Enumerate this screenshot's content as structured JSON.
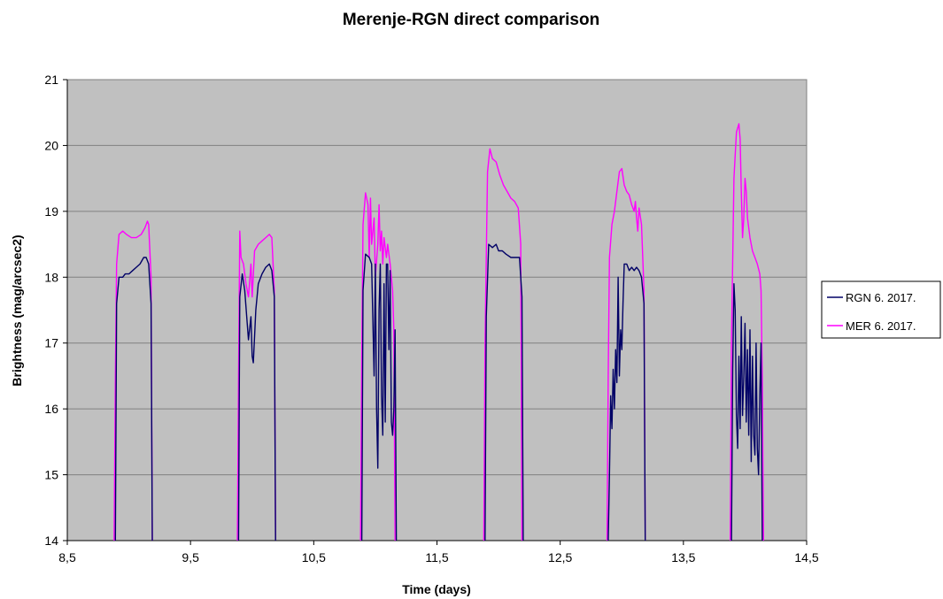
{
  "chart_data": {
    "type": "line",
    "title": "Merenje-RGN direct comparison",
    "xlabel": "Time (days)",
    "ylabel": "Brightness (mag/arcsec2)",
    "xlim": [
      8.5,
      14.5
    ],
    "ylim": [
      14,
      21
    ],
    "x_ticks": [
      "8,5",
      "9,5",
      "10,5",
      "11,5",
      "12,5",
      "13,5",
      "14,5"
    ],
    "y_ticks": [
      "14",
      "15",
      "16",
      "17",
      "18",
      "19",
      "20",
      "21"
    ],
    "grid": "horizontal",
    "plot_background": "#c0c0c0",
    "legend_position": "right",
    "series": [
      {
        "name": "RGN 6. 2017.",
        "color": "#000066",
        "points": [
          [
            8.89,
            14.0
          ],
          [
            8.9,
            17.6
          ],
          [
            8.92,
            18.0
          ],
          [
            8.95,
            18.0
          ],
          [
            8.97,
            18.05
          ],
          [
            9.0,
            18.05
          ],
          [
            9.03,
            18.1
          ],
          [
            9.06,
            18.15
          ],
          [
            9.09,
            18.2
          ],
          [
            9.12,
            18.3
          ],
          [
            9.14,
            18.3
          ],
          [
            9.16,
            18.2
          ],
          [
            9.18,
            17.6
          ],
          [
            9.19,
            14.0
          ],
          null,
          [
            9.89,
            14.0
          ],
          [
            9.9,
            17.7
          ],
          [
            9.92,
            18.05
          ],
          [
            9.94,
            17.8
          ],
          [
            9.96,
            17.3
          ],
          [
            9.97,
            17.05
          ],
          [
            9.99,
            17.4
          ],
          [
            10.0,
            16.8
          ],
          [
            10.01,
            16.7
          ],
          [
            10.02,
            17.1
          ],
          [
            10.03,
            17.5
          ],
          [
            10.05,
            17.9
          ],
          [
            10.08,
            18.05
          ],
          [
            10.11,
            18.15
          ],
          [
            10.14,
            18.2
          ],
          [
            10.16,
            18.1
          ],
          [
            10.18,
            17.7
          ],
          [
            10.19,
            14.0
          ],
          null,
          [
            10.89,
            14.0
          ],
          [
            10.9,
            17.8
          ],
          [
            10.92,
            18.35
          ],
          [
            10.95,
            18.3
          ],
          [
            10.97,
            18.2
          ],
          [
            10.99,
            16.5
          ],
          [
            11.0,
            18.2
          ],
          [
            11.01,
            16.0
          ],
          [
            11.02,
            15.1
          ],
          [
            11.03,
            17.5
          ],
          [
            11.04,
            18.2
          ],
          [
            11.05,
            16.2
          ],
          [
            11.06,
            15.6
          ],
          [
            11.07,
            17.9
          ],
          [
            11.08,
            15.8
          ],
          [
            11.09,
            18.2
          ],
          [
            11.1,
            18.2
          ],
          [
            11.11,
            16.9
          ],
          [
            11.12,
            18.1
          ],
          [
            11.13,
            15.8
          ],
          [
            11.14,
            15.6
          ],
          [
            11.15,
            16.0
          ],
          [
            11.16,
            17.2
          ],
          [
            11.17,
            14.0
          ],
          null,
          [
            11.89,
            14.0
          ],
          [
            11.9,
            17.4
          ],
          [
            11.92,
            18.5
          ],
          [
            11.95,
            18.45
          ],
          [
            11.98,
            18.5
          ],
          [
            12.0,
            18.4
          ],
          [
            12.03,
            18.4
          ],
          [
            12.06,
            18.35
          ],
          [
            12.1,
            18.3
          ],
          [
            12.14,
            18.3
          ],
          [
            12.17,
            18.3
          ],
          [
            12.19,
            17.7
          ],
          [
            12.2,
            14.0
          ],
          null,
          [
            12.89,
            14.0
          ],
          [
            12.9,
            15.0
          ],
          [
            12.91,
            16.2
          ],
          [
            12.92,
            15.7
          ],
          [
            12.93,
            16.6
          ],
          [
            12.94,
            16.0
          ],
          [
            12.95,
            16.9
          ],
          [
            12.96,
            16.4
          ],
          [
            12.97,
            18.0
          ],
          [
            12.98,
            16.5
          ],
          [
            12.99,
            17.2
          ],
          [
            13.0,
            16.9
          ],
          [
            13.01,
            17.6
          ],
          [
            13.02,
            18.2
          ],
          [
            13.04,
            18.2
          ],
          [
            13.06,
            18.1
          ],
          [
            13.08,
            18.15
          ],
          [
            13.1,
            18.1
          ],
          [
            13.12,
            18.15
          ],
          [
            13.14,
            18.1
          ],
          [
            13.16,
            18.0
          ],
          [
            13.18,
            17.6
          ],
          [
            13.19,
            14.0
          ],
          null,
          [
            13.89,
            14.0
          ],
          [
            13.9,
            16.6
          ],
          [
            13.91,
            17.9
          ],
          [
            13.92,
            17.5
          ],
          [
            13.93,
            15.9
          ],
          [
            13.94,
            15.4
          ],
          [
            13.95,
            16.8
          ],
          [
            13.96,
            15.7
          ],
          [
            13.97,
            17.4
          ],
          [
            13.98,
            15.9
          ],
          [
            13.99,
            16.5
          ],
          [
            14.0,
            17.3
          ],
          [
            14.01,
            15.8
          ],
          [
            14.02,
            16.9
          ],
          [
            14.03,
            15.6
          ],
          [
            14.04,
            17.2
          ],
          [
            14.05,
            15.2
          ],
          [
            14.06,
            16.8
          ],
          [
            14.07,
            15.6
          ],
          [
            14.08,
            15.3
          ],
          [
            14.09,
            17.0
          ],
          [
            14.1,
            15.4
          ],
          [
            14.11,
            15.0
          ],
          [
            14.12,
            16.2
          ],
          [
            14.13,
            17.0
          ],
          [
            14.14,
            14.0
          ]
        ]
      },
      {
        "name": "MER 6. 2017.",
        "color": "#ff00ff",
        "points": [
          [
            8.88,
            14.0
          ],
          [
            8.89,
            16.5
          ],
          [
            8.9,
            18.2
          ],
          [
            8.92,
            18.65
          ],
          [
            8.95,
            18.7
          ],
          [
            8.98,
            18.65
          ],
          [
            9.02,
            18.6
          ],
          [
            9.06,
            18.6
          ],
          [
            9.1,
            18.65
          ],
          [
            9.13,
            18.75
          ],
          [
            9.15,
            18.85
          ],
          [
            9.16,
            18.8
          ],
          [
            9.18,
            18.0
          ],
          [
            9.19,
            14.0
          ],
          null,
          [
            9.88,
            14.0
          ],
          [
            9.89,
            16.5
          ],
          [
            9.9,
            18.7
          ],
          [
            9.91,
            18.3
          ],
          [
            9.93,
            18.2
          ],
          [
            9.95,
            17.9
          ],
          [
            9.97,
            17.7
          ],
          [
            9.99,
            18.2
          ],
          [
            10.0,
            17.7
          ],
          [
            10.02,
            18.4
          ],
          [
            10.05,
            18.5
          ],
          [
            10.08,
            18.55
          ],
          [
            10.11,
            18.6
          ],
          [
            10.14,
            18.65
          ],
          [
            10.16,
            18.6
          ],
          [
            10.18,
            17.8
          ],
          [
            10.19,
            14.0
          ],
          null,
          [
            10.88,
            14.0
          ],
          [
            10.89,
            16.8
          ],
          [
            10.9,
            18.8
          ],
          [
            10.92,
            19.28
          ],
          [
            10.94,
            19.1
          ],
          [
            10.95,
            18.3
          ],
          [
            10.96,
            19.2
          ],
          [
            10.97,
            18.5
          ],
          [
            10.99,
            18.9
          ],
          [
            11.0,
            18.0
          ],
          [
            11.02,
            18.5
          ],
          [
            11.03,
            19.1
          ],
          [
            11.04,
            18.4
          ],
          [
            11.05,
            18.7
          ],
          [
            11.06,
            18.2
          ],
          [
            11.07,
            18.6
          ],
          [
            11.09,
            18.3
          ],
          [
            11.1,
            18.5
          ],
          [
            11.12,
            18.2
          ],
          [
            11.14,
            17.8
          ],
          [
            11.15,
            17.2
          ],
          [
            11.16,
            14.0
          ],
          null,
          [
            11.88,
            14.0
          ],
          [
            11.89,
            17.0
          ],
          [
            11.91,
            19.6
          ],
          [
            11.93,
            19.95
          ],
          [
            11.95,
            19.8
          ],
          [
            11.98,
            19.75
          ],
          [
            12.01,
            19.55
          ],
          [
            12.04,
            19.4
          ],
          [
            12.07,
            19.3
          ],
          [
            12.1,
            19.2
          ],
          [
            12.13,
            19.15
          ],
          [
            12.16,
            19.05
          ],
          [
            12.18,
            18.5
          ],
          [
            12.19,
            14.0
          ],
          null,
          [
            12.88,
            14.0
          ],
          [
            12.89,
            16.5
          ],
          [
            12.9,
            18.3
          ],
          [
            12.92,
            18.8
          ],
          [
            12.94,
            19.0
          ],
          [
            12.96,
            19.3
          ],
          [
            12.98,
            19.6
          ],
          [
            13.0,
            19.65
          ],
          [
            13.02,
            19.4
          ],
          [
            13.04,
            19.3
          ],
          [
            13.06,
            19.25
          ],
          [
            13.08,
            19.1
          ],
          [
            13.1,
            19.0
          ],
          [
            13.11,
            19.15
          ],
          [
            13.12,
            18.9
          ],
          [
            13.13,
            18.7
          ],
          [
            13.14,
            19.05
          ],
          [
            13.16,
            18.8
          ],
          [
            13.18,
            17.8
          ],
          [
            13.19,
            14.0
          ],
          null,
          [
            13.88,
            14.0
          ],
          [
            13.89,
            17.0
          ],
          [
            13.91,
            19.5
          ],
          [
            13.93,
            20.2
          ],
          [
            13.95,
            20.33
          ],
          [
            13.96,
            20.1
          ],
          [
            13.97,
            19.3
          ],
          [
            13.98,
            18.6
          ],
          [
            13.99,
            18.9
          ],
          [
            14.0,
            19.5
          ],
          [
            14.01,
            19.3
          ],
          [
            14.02,
            18.9
          ],
          [
            14.04,
            18.6
          ],
          [
            14.06,
            18.4
          ],
          [
            14.08,
            18.3
          ],
          [
            14.1,
            18.2
          ],
          [
            14.12,
            18.05
          ],
          [
            14.13,
            17.8
          ],
          [
            14.14,
            16.5
          ],
          [
            14.15,
            14.0
          ]
        ]
      }
    ]
  }
}
